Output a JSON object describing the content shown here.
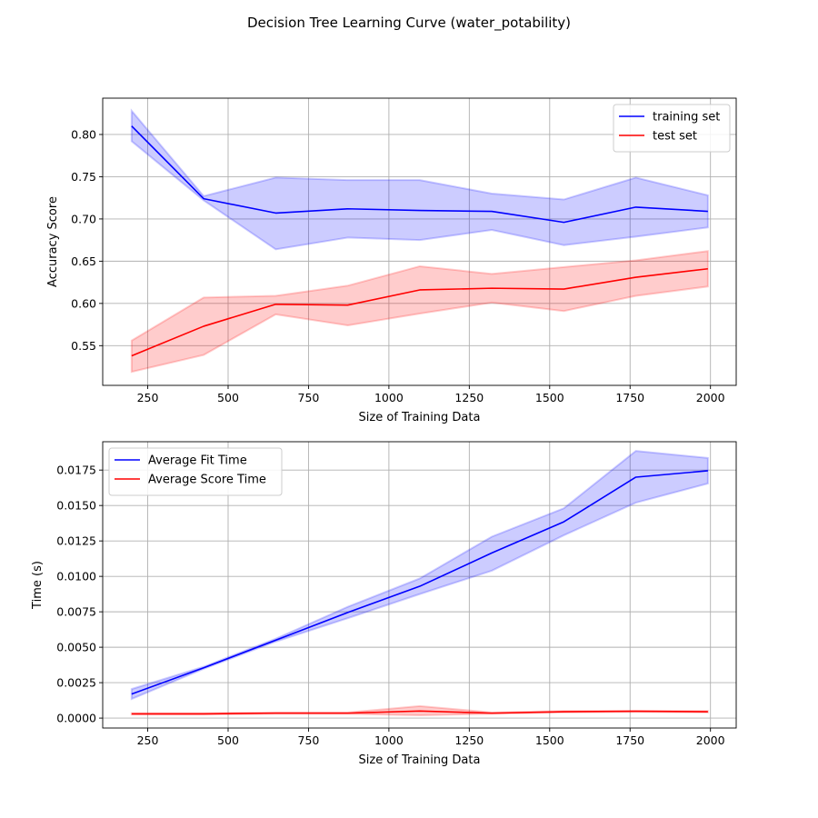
{
  "suptitle": "Decision Tree Learning Curve (water_potability)",
  "chart_data": [
    {
      "type": "line",
      "xlabel": "Size of Training Data",
      "ylabel": "Accuracy Score",
      "xlim": [
        110,
        2080
      ],
      "ylim": [
        0.503,
        0.843
      ],
      "xticks": [
        250,
        500,
        750,
        1000,
        1250,
        1500,
        1750,
        2000
      ],
      "yticks": [
        0.55,
        0.6,
        0.65,
        0.7,
        0.75,
        0.8
      ],
      "ytick_labels": [
        "0.55",
        "0.60",
        "0.65",
        "0.70",
        "0.75",
        "0.80"
      ],
      "grid": true,
      "legend": "top-right",
      "x": [
        200,
        424,
        648,
        872,
        1096,
        1320,
        1544,
        1768,
        1992
      ],
      "series": [
        {
          "name": "training set",
          "color": "#0000ff",
          "values": [
            0.81,
            0.724,
            0.707,
            0.712,
            0.71,
            0.709,
            0.696,
            0.714,
            0.709
          ],
          "upper": [
            0.828,
            0.727,
            0.749,
            0.746,
            0.746,
            0.73,
            0.723,
            0.749,
            0.728
          ],
          "lower": [
            0.792,
            0.722,
            0.664,
            0.678,
            0.675,
            0.687,
            0.669,
            0.679,
            0.69
          ]
        },
        {
          "name": "test set",
          "color": "#ff0000",
          "values": [
            0.538,
            0.573,
            0.599,
            0.598,
            0.616,
            0.618,
            0.617,
            0.631,
            0.641
          ],
          "upper": [
            0.556,
            0.607,
            0.609,
            0.621,
            0.644,
            0.635,
            0.643,
            0.651,
            0.662
          ],
          "lower": [
            0.519,
            0.539,
            0.587,
            0.574,
            0.588,
            0.601,
            0.591,
            0.609,
            0.62
          ]
        }
      ]
    },
    {
      "type": "line",
      "xlabel": "Size of Training Data",
      "ylabel": "Time (s)",
      "xlim": [
        110,
        2080
      ],
      "ylim": [
        -0.0007,
        0.0195
      ],
      "xticks": [
        250,
        500,
        750,
        1000,
        1250,
        1500,
        1750,
        2000
      ],
      "yticks": [
        0.0,
        0.0025,
        0.005,
        0.0075,
        0.01,
        0.0125,
        0.015,
        0.0175
      ],
      "ytick_labels": [
        "0.0000",
        "0.0025",
        "0.0050",
        "0.0075",
        "0.0100",
        "0.0125",
        "0.0150",
        "0.0175"
      ],
      "grid": true,
      "legend": "top-left",
      "x": [
        200,
        424,
        648,
        872,
        1096,
        1320,
        1544,
        1768,
        1992
      ],
      "series": [
        {
          "name": "Average Fit Time",
          "color": "#0000ff",
          "values": [
            0.0017,
            0.00355,
            0.0055,
            0.00745,
            0.0093,
            0.01165,
            0.01385,
            0.017,
            0.01745
          ],
          "upper": [
            0.00205,
            0.00362,
            0.0056,
            0.00785,
            0.00985,
            0.0128,
            0.0148,
            0.01885,
            0.01835
          ],
          "lower": [
            0.00135,
            0.00348,
            0.0054,
            0.00705,
            0.00875,
            0.0104,
            0.0129,
            0.0152,
            0.01655
          ]
        },
        {
          "name": "Average Score Time",
          "color": "#ff0000",
          "values": [
            0.0003,
            0.0003,
            0.00035,
            0.00035,
            0.0005,
            0.00035,
            0.00045,
            0.00048,
            0.00045
          ],
          "upper": [
            0.00035,
            0.00035,
            0.0004,
            0.0004,
            0.00085,
            0.0004,
            0.0005,
            0.00052,
            0.0005
          ],
          "lower": [
            0.00025,
            0.00025,
            0.0003,
            0.0003,
            0.0002,
            0.0003,
            0.0004,
            0.00044,
            0.0004
          ]
        }
      ]
    }
  ]
}
